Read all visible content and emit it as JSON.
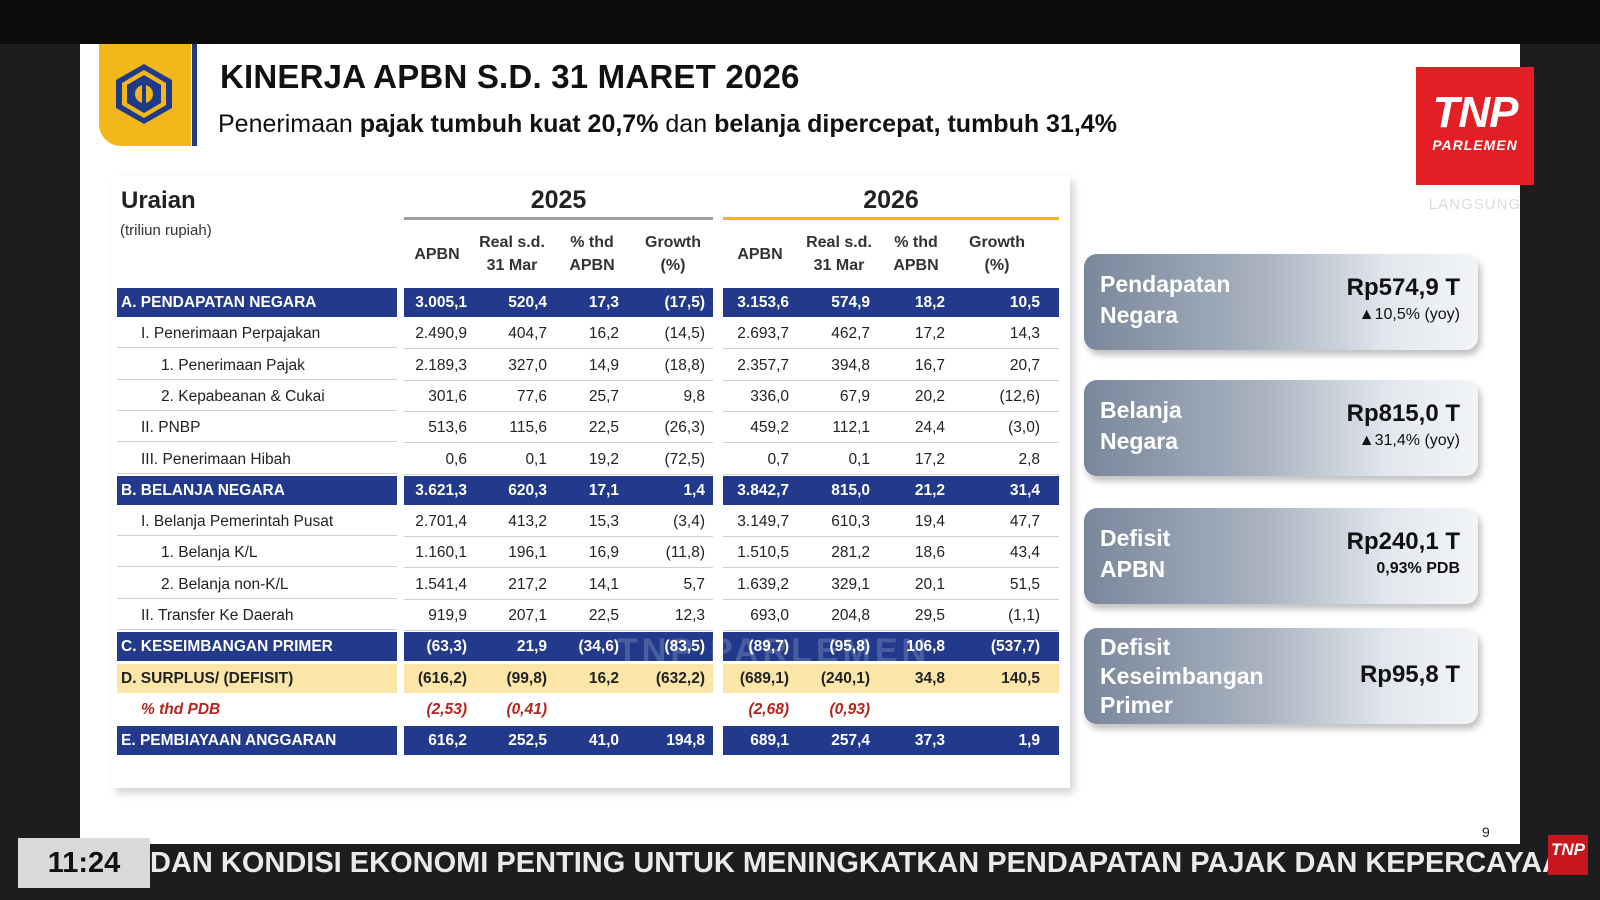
{
  "header": {
    "title": "KINERJA APBN S.D. 31 MARET 2026",
    "subtitle_part1": "Penerimaan ",
    "subtitle_bold1": "pajak tumbuh kuat 20,7%",
    "subtitle_part2": " dan ",
    "subtitle_bold2": "belanja dipercepat, tumbuh 31,4%"
  },
  "broadcaster": {
    "logo_main": "TNP",
    "logo_sub": "PARLEMEN",
    "live_label": "LANGSUNG",
    "watermark": "TNP PARLEMEN"
  },
  "table": {
    "row_header": "Uraian",
    "unit": "(triliun rupiah)",
    "years": [
      "2025",
      "2026"
    ],
    "col_headers": [
      [
        "APBN"
      ],
      [
        "Real s.d.",
        "31 Mar"
      ],
      [
        "% thd",
        "APBN"
      ],
      [
        "Growth",
        "(%)"
      ]
    ],
    "rows": [
      {
        "label": "A. PENDAPATAN NEGARA",
        "style": "blue",
        "v2025": [
          "3.005,1",
          "520,4",
          "17,3",
          "(17,5)"
        ],
        "v2026": [
          "3.153,6",
          "574,9",
          "18,2",
          "10,5"
        ]
      },
      {
        "label": "I. Penerimaan Perpajakan",
        "style": "plain",
        "indent": 1,
        "v2025": [
          "2.490,9",
          "404,7",
          "16,2",
          "(14,5)"
        ],
        "v2026": [
          "2.693,7",
          "462,7",
          "17,2",
          "14,3"
        ]
      },
      {
        "label": "1.  Penerimaan Pajak",
        "style": "plain",
        "indent": 2,
        "v2025": [
          "2.189,3",
          "327,0",
          "14,9",
          "(18,8)"
        ],
        "v2026": [
          "2.357,7",
          "394,8",
          "16,7",
          "20,7"
        ]
      },
      {
        "label": "2.  Kepabeanan & Cukai",
        "style": "plain",
        "indent": 2,
        "v2025": [
          "301,6",
          "77,6",
          "25,7",
          "9,8"
        ],
        "v2026": [
          "336,0",
          "67,9",
          "20,2",
          "(12,6)"
        ]
      },
      {
        "label": "II. PNBP",
        "style": "plain",
        "indent": 1,
        "v2025": [
          "513,6",
          "115,6",
          "22,5",
          "(26,3)"
        ],
        "v2026": [
          "459,2",
          "112,1",
          "24,4",
          "(3,0)"
        ]
      },
      {
        "label": "III. Penerimaan Hibah",
        "style": "plain",
        "indent": 1,
        "v2025": [
          "0,6",
          "0,1",
          "19,2",
          "(72,5)"
        ],
        "v2026": [
          "0,7",
          "0,1",
          "17,2",
          "2,8"
        ]
      },
      {
        "label": "B. BELANJA NEGARA",
        "style": "blue",
        "v2025": [
          "3.621,3",
          "620,3",
          "17,1",
          "1,4"
        ],
        "v2026": [
          "3.842,7",
          "815,0",
          "21,2",
          "31,4"
        ]
      },
      {
        "label": "I. Belanja Pemerintah Pusat",
        "style": "plain",
        "indent": 1,
        "v2025": [
          "2.701,4",
          "413,2",
          "15,3",
          "(3,4)"
        ],
        "v2026": [
          "3.149,7",
          "610,3",
          "19,4",
          "47,7"
        ]
      },
      {
        "label": "1.  Belanja K/L",
        "style": "plain",
        "indent": 2,
        "v2025": [
          "1.160,1",
          "196,1",
          "16,9",
          "(11,8)"
        ],
        "v2026": [
          "1.510,5",
          "281,2",
          "18,6",
          "43,4"
        ]
      },
      {
        "label": "2.  Belanja non-K/L",
        "style": "plain",
        "indent": 2,
        "v2025": [
          "1.541,4",
          "217,2",
          "14,1",
          "5,7"
        ],
        "v2026": [
          "1.639,2",
          "329,1",
          "20,1",
          "51,5"
        ]
      },
      {
        "label": "II. Transfer Ke Daerah",
        "style": "plain",
        "indent": 1,
        "v2025": [
          "919,9",
          "207,1",
          "22,5",
          "12,3"
        ],
        "v2026": [
          "693,0",
          "204,8",
          "29,5",
          "(1,1)"
        ]
      },
      {
        "label": "C. KESEIMBANGAN PRIMER",
        "style": "blue",
        "v2025": [
          "(63,3)",
          "21,9",
          "(34,6)",
          "(83,5)"
        ],
        "v2026": [
          "(89,7)",
          "(95,8)",
          "106,8",
          "(537,7)"
        ]
      },
      {
        "label": "D. SURPLUS/ (DEFISIT)",
        "style": "yellow",
        "v2025": [
          "(616,2)",
          "(99,8)",
          "16,2",
          "(632,2)"
        ],
        "v2026": [
          "(689,1)",
          "(240,1)",
          "34,8",
          "140,5"
        ]
      },
      {
        "label": "% thd PDB",
        "style": "pdb",
        "indent": 1,
        "v2025": [
          "(2,53)",
          "(0,41)",
          "",
          ""
        ],
        "v2026": [
          "(2,68)",
          "(0,93)",
          "",
          ""
        ]
      },
      {
        "label": "E. PEMBIAYAAN ANGGARAN",
        "style": "blue",
        "v2025": [
          "616,2",
          "252,5",
          "41,0",
          "194,8"
        ],
        "v2026": [
          "689,1",
          "257,4",
          "37,3",
          "1,9"
        ]
      }
    ]
  },
  "cards": [
    {
      "label_lines": [
        "Pendapatan",
        "Negara"
      ],
      "value": "Rp574,9 T",
      "sub": "▲10,5% (yoy)"
    },
    {
      "label_lines": [
        "Belanja",
        "Negara"
      ],
      "value": "Rp815,0 T",
      "sub": "▲31,4% (yoy)"
    },
    {
      "label_lines": [
        "Defisit",
        "APBN"
      ],
      "value": "Rp240,1 T",
      "sub": "0,93% PDB"
    },
    {
      "label_lines": [
        "Defisit",
        "Keseimbangan",
        "Primer"
      ],
      "value": "Rp95,8 T",
      "sub": ""
    }
  ],
  "page_number": "9",
  "footer": {
    "clock": "11:24",
    "ticker": "DAN KONDISI EKONOMI PENTING UNTUK MENINGKATKAN PENDAPATAN PAJAK DAN KEPERCAYAAN",
    "mini_logo": "TNP"
  },
  "colors": {
    "navy": "#233a8c",
    "gold": "#f4b71b",
    "yellow_row": "#fbe6a8",
    "tnp_red": "#e31e24",
    "pdb_red": "#b3251f"
  }
}
